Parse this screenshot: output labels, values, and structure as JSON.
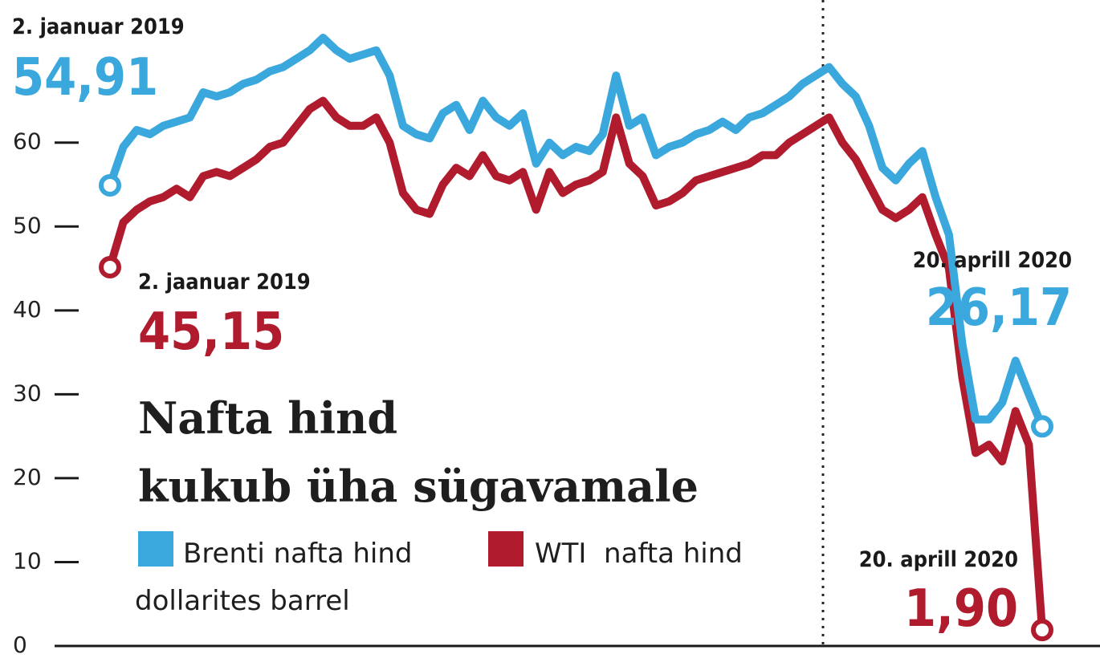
{
  "chart_data": {
    "type": "line",
    "title": "Nafta hind",
    "title_line2": "kukub üha sügavamale",
    "subtitle": "dollarites barrel",
    "categories": [
      "2. jaanuar 2019",
      null,
      null,
      null,
      null,
      null,
      null,
      null,
      null,
      null,
      null,
      null,
      null,
      null,
      null,
      null,
      null,
      null,
      null,
      null,
      null,
      null,
      null,
      null,
      null,
      null,
      null,
      null,
      null,
      null,
      null,
      null,
      null,
      null,
      null,
      null,
      null,
      null,
      null,
      null,
      null,
      null,
      null,
      null,
      null,
      null,
      null,
      null,
      null,
      null,
      null,
      null,
      null,
      null,
      null,
      null,
      null,
      null,
      null,
      null,
      null,
      null,
      null,
      null,
      null,
      null,
      null,
      null,
      null,
      null,
      "20. aprill 2020"
    ],
    "series": [
      {
        "name": "Brenti nafta hind",
        "color": "#3aa8dc",
        "values": [
          54.91,
          59.5,
          61.5,
          61,
          62,
          62.5,
          63,
          66,
          65.5,
          66,
          67,
          67.5,
          68.5,
          69,
          70,
          71,
          72.5,
          71,
          70,
          70.5,
          71,
          68,
          62,
          61,
          60.5,
          63.5,
          64.5,
          61.5,
          65,
          63,
          62,
          63.5,
          57.5,
          60,
          58.5,
          59.5,
          59,
          61,
          68,
          62,
          63,
          58.5,
          59.5,
          60,
          61,
          61.5,
          62.5,
          61.5,
          63,
          63.5,
          64.5,
          65.5,
          67,
          68,
          69,
          67,
          65.5,
          62,
          57,
          55.5,
          57.5,
          59,
          53.5,
          49,
          36,
          27,
          27,
          29,
          34,
          30,
          26.17
        ],
        "value_labels": [
          "54,91",
          null,
          null,
          null,
          null,
          null,
          null,
          null,
          null,
          null,
          null,
          null,
          null,
          null,
          null,
          null,
          null,
          null,
          null,
          null,
          null,
          null,
          null,
          null,
          null,
          null,
          null,
          null,
          null,
          null,
          null,
          null,
          null,
          null,
          null,
          null,
          null,
          null,
          null,
          null,
          null,
          null,
          null,
          null,
          null,
          null,
          null,
          null,
          null,
          null,
          null,
          null,
          null,
          null,
          null,
          null,
          null,
          null,
          null,
          null,
          null,
          null,
          null,
          null,
          null,
          null,
          null,
          null,
          null,
          null,
          "26,17"
        ]
      },
      {
        "name": "WTI  nafta hind",
        "color": "#b01c2e",
        "values": [
          45.15,
          50.5,
          52,
          53,
          53.5,
          54.5,
          53.5,
          56,
          56.5,
          56,
          57,
          58,
          59.5,
          60,
          62,
          64,
          65,
          63,
          62,
          62,
          63,
          60,
          54,
          52,
          51.5,
          55,
          57,
          56,
          58.5,
          56,
          55.5,
          56.5,
          52,
          56.5,
          54,
          55,
          55.5,
          56.5,
          63,
          57.5,
          56,
          52.5,
          53,
          54,
          55.5,
          56,
          56.5,
          57,
          57.5,
          58.5,
          58.5,
          60,
          61,
          62,
          63,
          60,
          58,
          55,
          52,
          51,
          52,
          53.5,
          49,
          45,
          32,
          23,
          24,
          22,
          28,
          24,
          1.9
        ],
        "value_labels": [
          "45,15",
          null,
          null,
          null,
          null,
          null,
          null,
          null,
          null,
          null,
          null,
          null,
          null,
          null,
          null,
          null,
          null,
          null,
          null,
          null,
          null,
          null,
          null,
          null,
          null,
          null,
          null,
          null,
          null,
          null,
          null,
          null,
          null,
          null,
          null,
          null,
          null,
          null,
          null,
          null,
          null,
          null,
          null,
          null,
          null,
          null,
          null,
          null,
          null,
          null,
          null,
          null,
          null,
          null,
          null,
          null,
          null,
          null,
          null,
          null,
          null,
          null,
          null,
          null,
          null,
          null,
          null,
          null,
          null,
          null,
          "1,90"
        ]
      }
    ],
    "ylim": [
      0,
      77
    ],
    "yticks": [
      0,
      10,
      20,
      30,
      40,
      50,
      60
    ]
  }
}
